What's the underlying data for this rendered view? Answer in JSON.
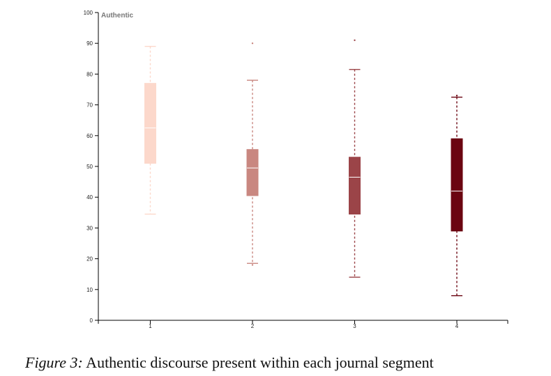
{
  "chart_data": {
    "type": "boxplot",
    "title": "",
    "xlabel": "",
    "ylabel": "Authentic",
    "ylim": [
      0,
      100
    ],
    "yticks": [
      0,
      10,
      20,
      30,
      40,
      50,
      60,
      70,
      80,
      90,
      100
    ],
    "categories": [
      "1",
      "2",
      "3",
      "4"
    ],
    "grid": false,
    "boxes": [
      {
        "category": "1",
        "whisker_low": 34.5,
        "q1": 51.0,
        "median": 62.5,
        "q3": 77.0,
        "whisker_high": 89.0,
        "outliers": [],
        "color": "#fcd8cb"
      },
      {
        "category": "2",
        "whisker_low": 18.5,
        "q1": 40.5,
        "median": 49.5,
        "q3": 55.5,
        "whisker_high": 78.0,
        "outliers": [
          18.0,
          90.0
        ],
        "color": "#c98780"
      },
      {
        "category": "3",
        "whisker_low": 14.0,
        "q1": 34.5,
        "median": 46.5,
        "q3": 53.0,
        "whisker_high": 81.5,
        "outliers": [
          91.0
        ],
        "color": "#9b4448"
      },
      {
        "category": "4",
        "whisker_low": 8.0,
        "q1": 29.0,
        "median": 42.0,
        "q3": 59.0,
        "whisker_high": 72.5,
        "outliers": [
          73.0
        ],
        "color": "#6b0511"
      }
    ]
  },
  "caption": {
    "figure_label": "Figure 3:",
    "text": " Authentic discourse present within each journal segment"
  }
}
